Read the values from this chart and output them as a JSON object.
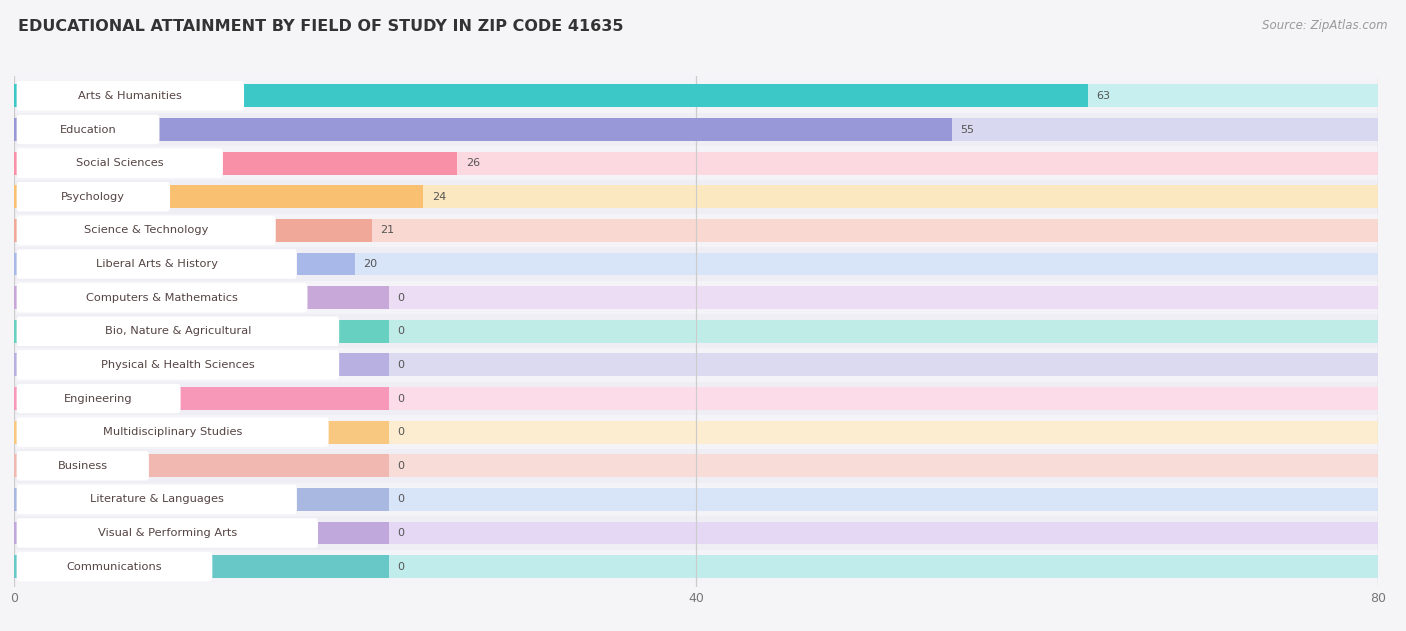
{
  "title": "EDUCATIONAL ATTAINMENT BY FIELD OF STUDY IN ZIP CODE 41635",
  "source": "Source: ZipAtlas.com",
  "categories": [
    "Arts & Humanities",
    "Education",
    "Social Sciences",
    "Psychology",
    "Science & Technology",
    "Liberal Arts & History",
    "Computers & Mathematics",
    "Bio, Nature & Agricultural",
    "Physical & Health Sciences",
    "Engineering",
    "Multidisciplinary Studies",
    "Business",
    "Literature & Languages",
    "Visual & Performing Arts",
    "Communications"
  ],
  "values": [
    63,
    55,
    26,
    24,
    21,
    20,
    0,
    0,
    0,
    0,
    0,
    0,
    0,
    0,
    0
  ],
  "bar_colors": [
    "#3dc8c8",
    "#9898d8",
    "#f890a8",
    "#f8c070",
    "#f0a898",
    "#a8b8e8",
    "#c8a8d8",
    "#68d0c0",
    "#b8b0e0",
    "#f898b8",
    "#f8c880",
    "#f0b8b0",
    "#a8b8e0",
    "#c0a8dc",
    "#68c8c8"
  ],
  "bar_bg_colors": [
    "#c8efef",
    "#d8d8f0",
    "#fcd8e0",
    "#fce8c0",
    "#f8d8d0",
    "#d8e4f8",
    "#ecdcf4",
    "#c0ece8",
    "#dcdaf0",
    "#fcdce8",
    "#fcecd0",
    "#f8dcd8",
    "#d8e4f8",
    "#e4d8f4",
    "#c0ecec"
  ],
  "xlim": [
    0,
    80
  ],
  "xticks": [
    0,
    40,
    80
  ],
  "row_bg_colors": [
    "#f4f4f8",
    "#eeeef4"
  ],
  "background_color": "#f5f5f8",
  "title_fontsize": 11.5,
  "source_fontsize": 8.5,
  "zero_bar_width": 22
}
